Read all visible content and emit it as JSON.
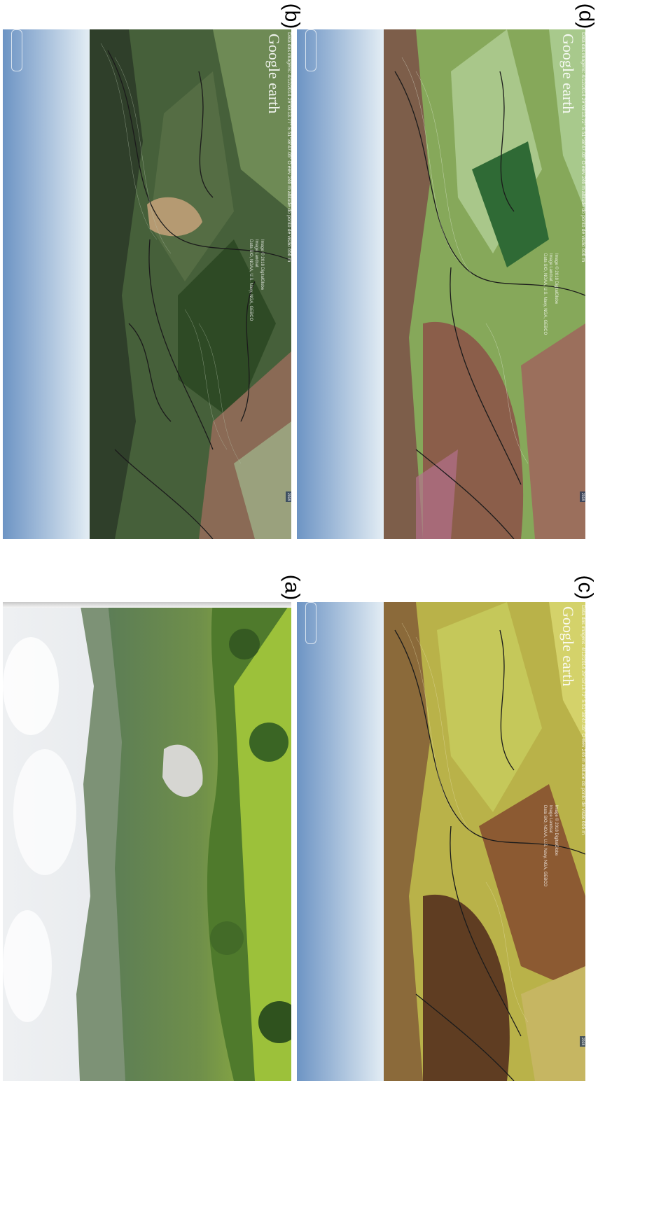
{
  "panels": {
    "a": {
      "label": "(a)"
    },
    "b": {
      "label": "(b)",
      "logo": "Google earth",
      "meta": "Data das imagens: 4/12/2014   29°03'13.77\" S  51°38'47.05\" O  elev  246 m   altitude do ponto de visão  656 m",
      "credit": "Image © 2018 DigitalGlobe\nImage Landsat\nData SIO, NOAA, U.S. Navy, NGA, GEBCO",
      "year": "2018"
    },
    "c": {
      "label": "(c)",
      "logo": "Google earth",
      "meta": "Data das imagens: 4/12/2014   29°03'13.72\" S  51°38'47.05\" O  elev  246 m   altitude do ponto de visão  606 m",
      "credit": "Image © 2018 DigitalGlobe\nImage Landsat\nData SIO, NOAA, U.S. Navy, NGA, GEBCO",
      "year": "2018"
    },
    "d": {
      "label": "(d)",
      "logo": "Google earth",
      "meta": "Data das imagens: 4/12/2014   29°03'13.72\" S  51°38'47.05\" O  elev  246 m   altitude do ponto de visão  606 m",
      "credit": "Image © 2018 DigitalGlobe\nImage Landsat\nData SIO, NOAA, U.S. Navy, NGA, GEBCO",
      "year": "2018"
    }
  },
  "colors": {
    "sky_top": "#6d94c4",
    "sky_bottom": "#dfeaf3",
    "forest": "#3d5a2c",
    "field": "#8ea866",
    "soil": "#8a6a55",
    "river": "#b59a72"
  }
}
